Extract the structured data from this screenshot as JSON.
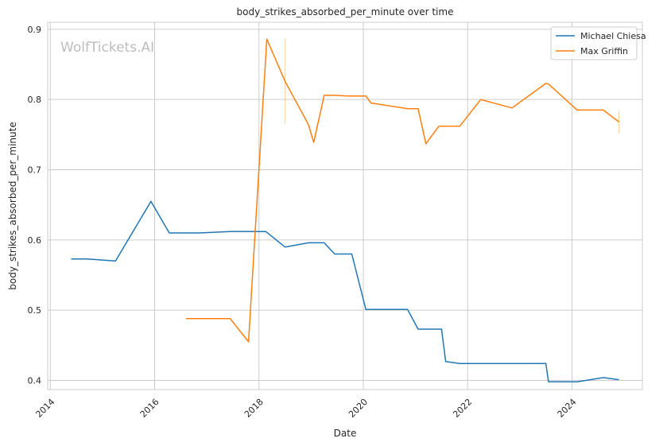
{
  "chart_data": {
    "type": "line",
    "title": "body_strikes_absorbed_per_minute over time",
    "xlabel": "Date",
    "ylabel": "body_strikes_absorbed_per_minute",
    "watermark": "WolfTickets.AI",
    "xlim": [
      2013.95,
      2025.35
    ],
    "ylim": [
      0.387,
      0.91
    ],
    "x_ticks": [
      2014,
      2016,
      2018,
      2020,
      2022,
      2024
    ],
    "x_tick_labels": [
      "2014",
      "2016",
      "2018",
      "2020",
      "2022",
      "2024"
    ],
    "y_ticks": [
      0.4,
      0.5,
      0.6,
      0.7,
      0.8,
      0.9
    ],
    "y_tick_labels": [
      "0.4",
      "0.5",
      "0.6",
      "0.7",
      "0.8",
      "0.9"
    ],
    "grid": true,
    "legend_position": "top-right",
    "series": [
      {
        "name": "Michael Chiesa",
        "color": "#1f77b4",
        "x": [
          2014.4,
          2014.7,
          2015.25,
          2015.93,
          2016.28,
          2016.85,
          2017.45,
          2018.13,
          2018.5,
          2018.95,
          2019.25,
          2019.45,
          2019.78,
          2020.05,
          2020.4,
          2020.85,
          2021.05,
          2021.5,
          2021.58,
          2021.85,
          2022.3,
          2023.5,
          2023.55,
          2024.1,
          2024.6,
          2024.9
        ],
        "y": [
          0.573,
          0.573,
          0.57,
          0.655,
          0.61,
          0.61,
          0.612,
          0.612,
          0.59,
          0.596,
          0.596,
          0.58,
          0.58,
          0.501,
          0.501,
          0.501,
          0.473,
          0.473,
          0.427,
          0.424,
          0.424,
          0.424,
          0.398,
          0.398,
          0.404,
          0.401
        ]
      },
      {
        "name": "Max Griffin",
        "color": "#ff7f0e",
        "x": [
          2016.6,
          2017.45,
          2017.8,
          2018.15,
          2018.5,
          2018.95,
          2019.05,
          2019.25,
          2019.45,
          2019.7,
          2020.05,
          2020.15,
          2020.85,
          2021.05,
          2021.2,
          2021.45,
          2021.85,
          2022.25,
          2022.85,
          2023.5,
          2023.55,
          2024.1,
          2024.6,
          2024.9
        ],
        "y": [
          0.488,
          0.488,
          0.455,
          0.886,
          0.826,
          0.764,
          0.739,
          0.806,
          0.806,
          0.805,
          0.805,
          0.795,
          0.787,
          0.787,
          0.737,
          0.762,
          0.762,
          0.8,
          0.788,
          0.823,
          0.822,
          0.785,
          0.785,
          0.768
        ]
      }
    ],
    "error_bars": [
      {
        "series": "Max Griffin",
        "x": 2018.5,
        "y_low": 0.765,
        "y_high": 0.886
      },
      {
        "series": "Max Griffin",
        "x": 2024.9,
        "y_low": 0.752,
        "y_high": 0.784
      }
    ]
  }
}
